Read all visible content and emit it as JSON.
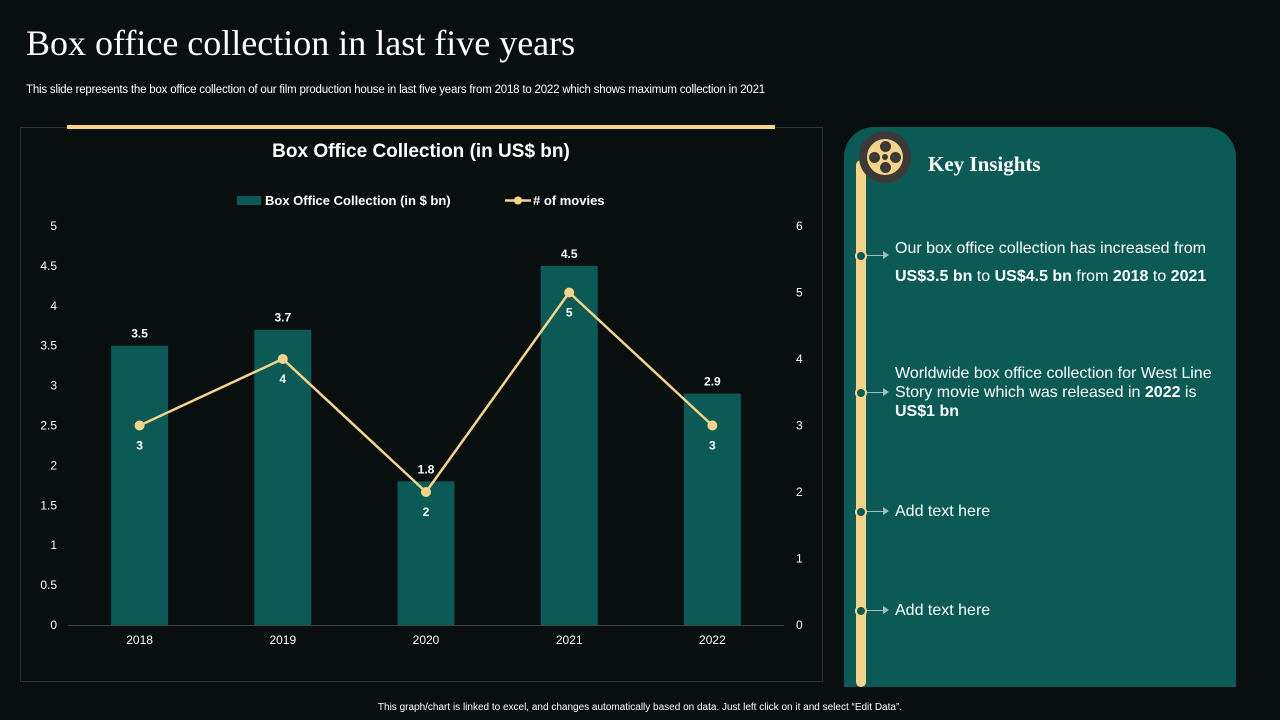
{
  "page": {
    "title": "Box office collection in last five years",
    "subtitle": "This slide represents the box office collection of our film production house in last five years from 2018 to 2022 which shows maximum collection in 2021",
    "footer": "This graph/chart is linked to excel, and changes automatically based on data. Just left click on it and select “Edit Data”."
  },
  "insights": {
    "title": "Key Insights",
    "items": [
      {
        "parts": [
          {
            "text": "Our box office collection has increased from ",
            "bold": false
          },
          {
            "text": "US$3.5 bn",
            "bold": true
          },
          {
            "text": " to ",
            "bold": false
          },
          {
            "text": "US$4.5 bn",
            "bold": true
          },
          {
            "text": " from ",
            "bold": false
          },
          {
            "text": "2018",
            "bold": true
          },
          {
            "text": " to ",
            "bold": false
          },
          {
            "text": "2021",
            "bold": true
          }
        ]
      },
      {
        "parts": [
          {
            "text": "Worldwide box office collection for West Line Story movie which was released in ",
            "bold": false
          },
          {
            "text": "2022",
            "bold": true
          },
          {
            "text": " is ",
            "bold": false
          },
          {
            "text": "US$1 bn",
            "bold": true
          }
        ]
      },
      {
        "parts": [
          {
            "text": "Add text here",
            "bold": false
          }
        ]
      },
      {
        "parts": [
          {
            "text": "Add text here",
            "bold": false
          }
        ]
      }
    ]
  },
  "colors": {
    "background": "#080f0e",
    "bar": "#0b5a55",
    "line": "#f5d48a",
    "panel": "#0b5a55",
    "accent": "#f5d48a"
  },
  "chart_data": {
    "type": "bar",
    "title": "Box Office Collection  (in US$ bn)",
    "categories": [
      "2018",
      "2019",
      "2020",
      "2021",
      "2022"
    ],
    "series": [
      {
        "name": "Box Office Collection (in $ bn)",
        "type": "bar",
        "axis": "left",
        "values": [
          3.5,
          3.7,
          1.8,
          4.5,
          2.9
        ]
      },
      {
        "name": "# of movies",
        "type": "line",
        "axis": "right",
        "values": [
          3,
          4,
          2,
          5,
          3
        ]
      }
    ],
    "y_left": {
      "min": 0,
      "max": 5,
      "ticks": [
        "0",
        "0.5",
        "1",
        "1.5",
        "2",
        "2.5",
        "3",
        "3.5",
        "4",
        "4.5",
        "5"
      ]
    },
    "y_right": {
      "min": 0,
      "max": 6,
      "ticks": [
        "0",
        "1",
        "2",
        "3",
        "4",
        "5",
        "6"
      ]
    },
    "legend": "top",
    "grid": false,
    "data_labels": true
  }
}
